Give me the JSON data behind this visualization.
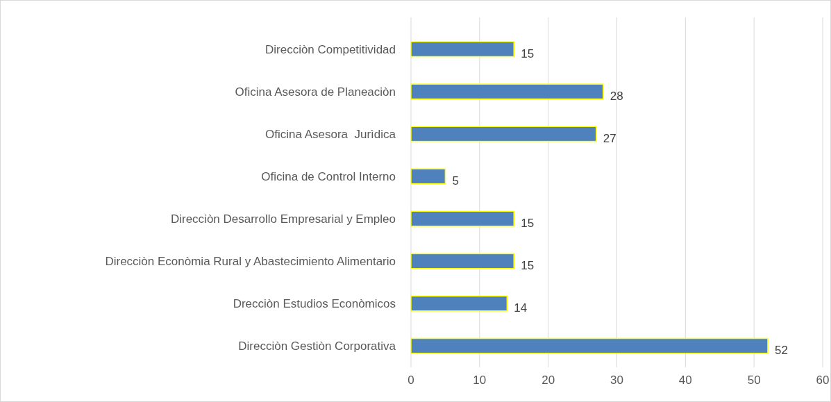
{
  "chart_data": {
    "type": "bar",
    "orientation": "horizontal",
    "categories": [
      "Direcciòn Competitividad",
      "Oficina Asesora de Planeaciòn",
      "Oficina Asesora  Jurìdica",
      "Oficina de Control Interno",
      "Direcciòn Desarrollo Empresarial y Empleo",
      "Direcciòn Econòmia Rural y Abastecimiento Alimentario",
      "Drecciòn Estudios Econòmicos",
      "Direcciòn Gestiòn Corporativa"
    ],
    "values": [
      15,
      28,
      27,
      5,
      15,
      15,
      14,
      52
    ],
    "color": "#4f81bd",
    "xlim": [
      0,
      60
    ],
    "xticks": [
      0,
      10,
      20,
      30,
      40,
      50,
      60
    ],
    "grid": "x",
    "data_labels": true
  }
}
